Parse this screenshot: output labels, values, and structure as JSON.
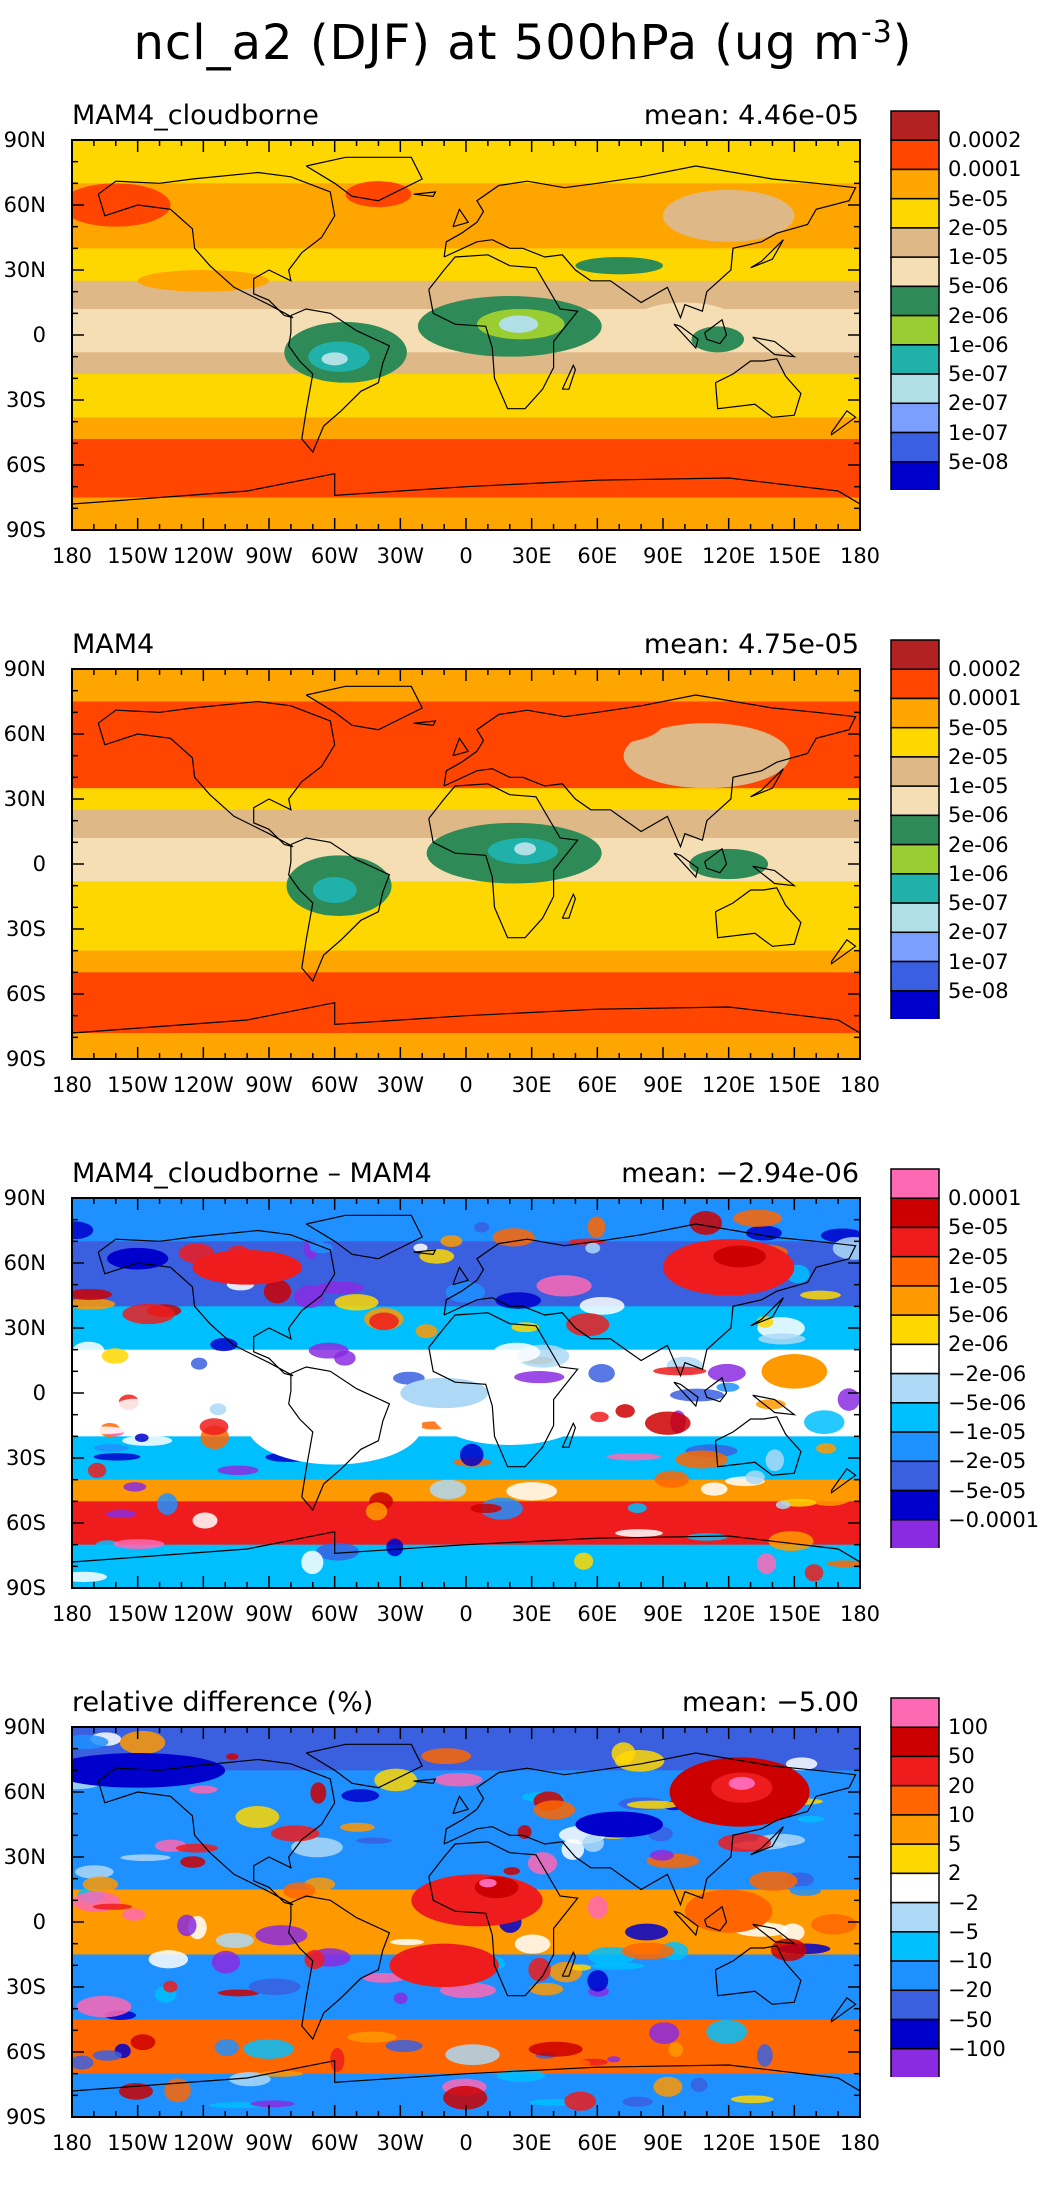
{
  "title": {
    "main": "ncl_a2 (DJF) at 500hPa (ug m",
    "sup": "-3",
    "close": ")"
  },
  "axes": {
    "y_ticks": [
      "90N",
      "60N",
      "30N",
      "0",
      "30S",
      "60S",
      "90S"
    ],
    "x_ticks": [
      "180",
      "150W",
      "120W",
      "90W",
      "60W",
      "30W",
      "0",
      "30E",
      "60E",
      "90E",
      "120E",
      "150E",
      "180"
    ]
  },
  "colors": {
    "concentration": [
      "#b22222",
      "#ff4500",
      "#ffa500",
      "#ffd700",
      "#deb887",
      "#f5deb3",
      "#2e8b57",
      "#9acd32",
      "#20b2aa",
      "#b0e0e6",
      "#7b9fff",
      "#3a5fe0",
      "#0000cd"
    ],
    "difference": [
      "#ff69b4",
      "#cc0000",
      "#ee1c1c",
      "#ff6600",
      "#ff9900",
      "#ffd700",
      "#ffffff",
      "#add8f6",
      "#00bfff",
      "#1e90ff",
      "#3a60e0",
      "#0000cd",
      "#8a2be2"
    ]
  },
  "panels": [
    {
      "title": "MAM4_cloudborne",
      "mean": "mean: 4.46e-05",
      "palette": "concentration",
      "legend_labels": [
        "0.0002",
        "0.0001",
        "5e-05",
        "2e-05",
        "1e-05",
        "5e-06",
        "2e-06",
        "1e-06",
        "5e-07",
        "2e-07",
        "1e-07",
        "5e-08"
      ]
    },
    {
      "title": "MAM4",
      "mean": "mean: 4.75e-05",
      "palette": "concentration",
      "legend_labels": [
        "0.0002",
        "0.0001",
        "5e-05",
        "2e-05",
        "1e-05",
        "5e-06",
        "2e-06",
        "1e-06",
        "5e-07",
        "2e-07",
        "1e-07",
        "5e-08"
      ]
    },
    {
      "title": "MAM4_cloudborne – MAM4",
      "mean": "mean: −2.94e-06",
      "palette": "difference",
      "legend_labels": [
        "0.0001",
        "5e-05",
        "2e-05",
        "1e-05",
        "5e-06",
        "2e-06",
        "−2e-06",
        "−5e-06",
        "−1e-05",
        "−2e-05",
        "−5e-05",
        "−0.0001"
      ]
    },
    {
      "title": "relative difference (%)",
      "mean": "mean: −5.00",
      "palette": "difference",
      "legend_labels": [
        "100",
        "50",
        "20",
        "10",
        "5",
        "2",
        "−2",
        "−5",
        "−10",
        "−20",
        "−50",
        "−100"
      ]
    }
  ],
  "chart_data": [
    {
      "type": "heatmap",
      "title": "MAM4_cloudborne",
      "annotation": "mean: 4.46e-05",
      "xlim": [
        -180,
        180
      ],
      "ylim": [
        -90,
        90
      ],
      "levels": [
        "0.0002",
        "0.0001",
        "5e-05",
        "2e-05",
        "1e-05",
        "5e-06",
        "2e-06",
        "1e-06",
        "5e-07",
        "2e-07",
        "1e-07",
        "5e-08"
      ]
    },
    {
      "type": "heatmap",
      "title": "MAM4",
      "annotation": "mean: 4.75e-05",
      "xlim": [
        -180,
        180
      ],
      "ylim": [
        -90,
        90
      ],
      "levels": [
        "0.0002",
        "0.0001",
        "5e-05",
        "2e-05",
        "1e-05",
        "5e-06",
        "2e-06",
        "1e-06",
        "5e-07",
        "2e-07",
        "1e-07",
        "5e-08"
      ]
    },
    {
      "type": "heatmap",
      "title": "MAM4_cloudborne – MAM4",
      "annotation": "mean: −2.94e-06",
      "xlim": [
        -180,
        180
      ],
      "ylim": [
        -90,
        90
      ],
      "levels": [
        "0.0001",
        "5e-05",
        "2e-05",
        "1e-05",
        "5e-06",
        "2e-06",
        "−2e-06",
        "−5e-06",
        "−1e-05",
        "−2e-05",
        "−5e-05",
        "−0.0001"
      ]
    },
    {
      "type": "heatmap",
      "title": "relative difference (%)",
      "annotation": "mean: −5.00",
      "xlim": [
        -180,
        180
      ],
      "ylim": [
        -90,
        90
      ],
      "levels": [
        "100",
        "50",
        "20",
        "10",
        "5",
        "2",
        "−2",
        "−5",
        "−10",
        "−20",
        "−50",
        "−100"
      ]
    }
  ]
}
